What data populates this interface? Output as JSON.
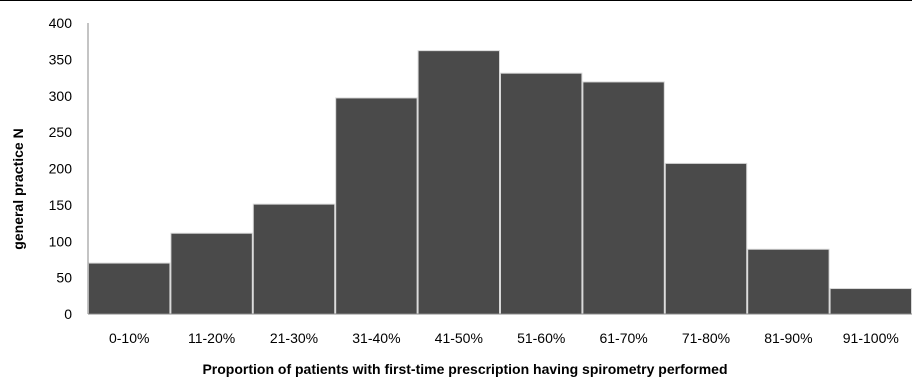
{
  "chart_data": {
    "type": "bar",
    "categories": [
      "0-10%",
      "11-20%",
      "21-30%",
      "31-40%",
      "41-50%",
      "51-60%",
      "61-70%",
      "71-80%",
      "81-90%",
      "91-100%"
    ],
    "values": [
      70,
      111,
      151,
      297,
      362,
      331,
      319,
      207,
      89,
      35
    ],
    "xlabel": "Proportion  of patients with first-time prescription  having spirometry performed",
    "ylabel": "general practice N",
    "ylim": [
      0,
      400
    ],
    "yticks": [
      0,
      50,
      100,
      150,
      200,
      250,
      300,
      350,
      400
    ],
    "bar_color": "#4a4a4a",
    "grid": false,
    "legend": "none"
  }
}
